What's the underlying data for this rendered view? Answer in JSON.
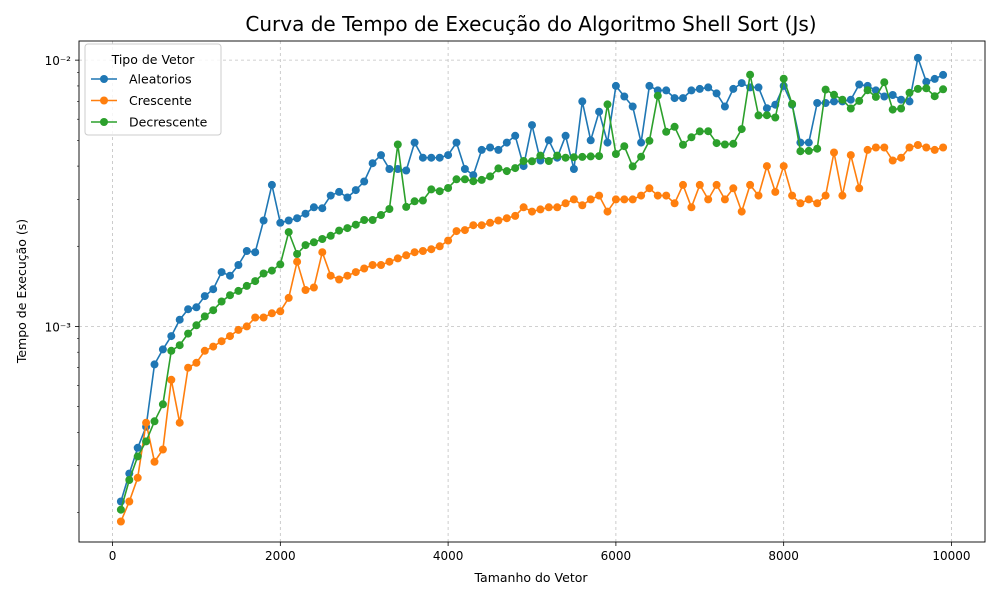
{
  "chart_data": {
    "type": "line",
    "title": "Curva de Tempo de Execução do Algoritmo Shell Sort (Js)",
    "xlabel": "Tamanho do Vetor",
    "ylabel": "Tempo de Execução (s)",
    "yscale": "log",
    "xlim": [
      -400,
      10400
    ],
    "ylim": [
      0.000155,
      0.0118
    ],
    "xticks": [
      0,
      2000,
      4000,
      6000,
      8000,
      10000
    ],
    "xtick_labels": [
      "0",
      "2000",
      "4000",
      "6000",
      "8000",
      "10000"
    ],
    "yticks": [
      0.001,
      0.01
    ],
    "ytick_labels": [
      "10⁻³",
      "10⁻²"
    ],
    "grid": true,
    "legend_title": "Tipo de Vetor",
    "legend_position": "top-left",
    "x": [
      100,
      200,
      300,
      400,
      500,
      600,
      700,
      800,
      900,
      1000,
      1100,
      1200,
      1300,
      1400,
      1500,
      1600,
      1700,
      1800,
      1900,
      2000,
      2100,
      2200,
      2300,
      2400,
      2500,
      2600,
      2700,
      2800,
      2900,
      3000,
      3100,
      3200,
      3300,
      3400,
      3500,
      3600,
      3700,
      3800,
      3900,
      4000,
      4100,
      4200,
      4300,
      4400,
      4500,
      4600,
      4700,
      4800,
      4900,
      5000,
      5100,
      5200,
      5300,
      5400,
      5500,
      5600,
      5700,
      5800,
      5900,
      6000,
      6100,
      6200,
      6300,
      6400,
      6500,
      6600,
      6700,
      6800,
      6900,
      7000,
      7100,
      7200,
      7300,
      7400,
      7500,
      7600,
      7700,
      7800,
      7900,
      8000,
      8100,
      8200,
      8300,
      8400,
      8500,
      8600,
      8700,
      8800,
      8900,
      9000,
      9100,
      9200,
      9300,
      9400,
      9500,
      9600,
      9700,
      9800,
      9900
    ],
    "series": [
      {
        "name": "Aleatorios",
        "color": "#1f77b4",
        "values": [
          0.00022,
          0.00028,
          0.00035,
          0.00042,
          0.00072,
          0.00082,
          0.00092,
          0.00106,
          0.00116,
          0.00118,
          0.0013,
          0.00138,
          0.0016,
          0.00155,
          0.0017,
          0.00192,
          0.0019,
          0.0025,
          0.0034,
          0.00245,
          0.0025,
          0.00255,
          0.00265,
          0.0028,
          0.00278,
          0.0031,
          0.0032,
          0.00305,
          0.00325,
          0.0035,
          0.0041,
          0.0044,
          0.0039,
          0.0039,
          0.00385,
          0.0049,
          0.0043,
          0.0043,
          0.0043,
          0.0044,
          0.0049,
          0.0039,
          0.0037,
          0.0046,
          0.0047,
          0.0046,
          0.0049,
          0.0052,
          0.004,
          0.0057,
          0.0042,
          0.005,
          0.0043,
          0.0052,
          0.0039,
          0.007,
          0.005,
          0.0064,
          0.0049,
          0.008,
          0.0073,
          0.0067,
          0.0049,
          0.008,
          0.0077,
          0.0077,
          0.0072,
          0.0072,
          0.0077,
          0.0078,
          0.0079,
          0.0075,
          0.0067,
          0.0078,
          0.0082,
          0.0079,
          0.0079,
          0.0066,
          0.0068,
          0.008,
          0.0068,
          0.0049,
          0.0049,
          0.0069,
          0.0069,
          0.007,
          0.007,
          0.0071,
          0.0081,
          0.008,
          0.0077,
          0.0073,
          0.0074,
          0.0071,
          0.007,
          0.0102,
          0.0083,
          0.0085,
          0.0088
        ]
      },
      {
        "name": "Crescente",
        "color": "#ff7f0e",
        "values": [
          0.000185,
          0.00022,
          0.00027,
          0.000435,
          0.00031,
          0.000345,
          0.00063,
          0.000435,
          0.0007,
          0.00073,
          0.00081,
          0.00084,
          0.00088,
          0.00092,
          0.00097,
          0.001,
          0.00108,
          0.00108,
          0.00112,
          0.00114,
          0.00128,
          0.00175,
          0.00137,
          0.0014,
          0.0019,
          0.00155,
          0.0015,
          0.00155,
          0.0016,
          0.00165,
          0.0017,
          0.0017,
          0.00175,
          0.0018,
          0.00185,
          0.0019,
          0.00192,
          0.00195,
          0.002,
          0.0021,
          0.00228,
          0.0023,
          0.0024,
          0.0024,
          0.00245,
          0.0025,
          0.00255,
          0.0026,
          0.0028,
          0.0027,
          0.00275,
          0.0028,
          0.0028,
          0.0029,
          0.003,
          0.00285,
          0.003,
          0.0031,
          0.0027,
          0.003,
          0.003,
          0.003,
          0.0031,
          0.0033,
          0.0031,
          0.0031,
          0.0029,
          0.0034,
          0.0028,
          0.0034,
          0.003,
          0.0034,
          0.003,
          0.0033,
          0.0027,
          0.0034,
          0.0031,
          0.004,
          0.0032,
          0.004,
          0.0031,
          0.0029,
          0.003,
          0.0029,
          0.0031,
          0.0045,
          0.0031,
          0.0044,
          0.0033,
          0.0046,
          0.0047,
          0.0047,
          0.0042,
          0.0043,
          0.0047,
          0.0048,
          0.0047,
          0.0046,
          0.0047
        ]
      },
      {
        "name": "Decrescente",
        "color": "#2ca02c",
        "values": [
          0.000205,
          0.000265,
          0.000325,
          0.00037,
          0.00044,
          0.00051,
          0.00081,
          0.00085,
          0.00094,
          0.00101,
          0.00109,
          0.00115,
          0.00124,
          0.00131,
          0.00136,
          0.00142,
          0.00148,
          0.00158,
          0.00162,
          0.00171,
          0.00226,
          0.00187,
          0.00202,
          0.00207,
          0.00213,
          0.00219,
          0.00229,
          0.00234,
          0.00241,
          0.00251,
          0.00251,
          0.00262,
          0.00276,
          0.00482,
          0.00281,
          0.00295,
          0.00297,
          0.00327,
          0.00322,
          0.00331,
          0.00357,
          0.00357,
          0.00351,
          0.00355,
          0.00366,
          0.00392,
          0.00383,
          0.00393,
          0.00418,
          0.00417,
          0.00438,
          0.00418,
          0.00438,
          0.0043,
          0.00432,
          0.00433,
          0.00435,
          0.00436,
          0.00682,
          0.00444,
          0.00475,
          0.00399,
          0.00434,
          0.00498,
          0.00735,
          0.00538,
          0.00562,
          0.00481,
          0.00513,
          0.0054,
          0.00541,
          0.00488,
          0.00482,
          0.00485,
          0.00551,
          0.00882,
          0.0062,
          0.00621,
          0.00609,
          0.00852,
          0.00685,
          0.00455,
          0.00456,
          0.00465,
          0.00775,
          0.00741,
          0.0071,
          0.00658,
          0.00703,
          0.00771,
          0.00728,
          0.00826,
          0.00652,
          0.00658,
          0.00754,
          0.0078,
          0.00784,
          0.00732,
          0.00777
        ]
      }
    ]
  }
}
